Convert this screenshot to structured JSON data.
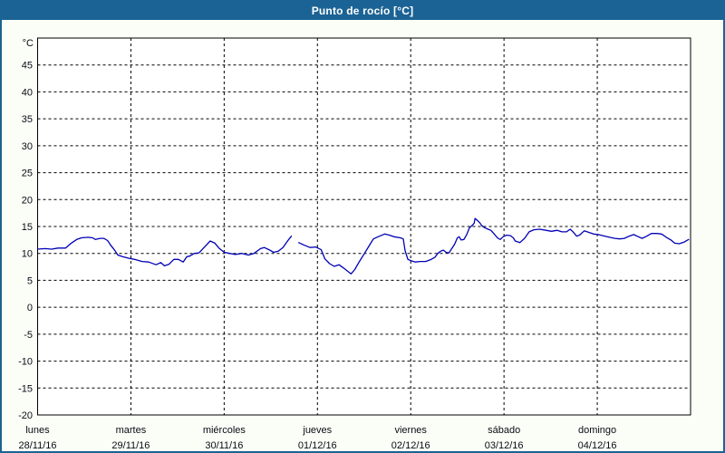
{
  "window": {
    "title": "Punto de rocío [°C]"
  },
  "colors": {
    "titlebar": "#1b6394",
    "border": "#1b6394",
    "background": "#fbfef7",
    "plot_bg": "#ffffff",
    "grid": "#000000",
    "text": "#0a0a14",
    "line": "#0000b4"
  },
  "chart_data": {
    "type": "line",
    "title": "Punto de rocío [°C]",
    "unit_label": "°C",
    "ylabel": "°C",
    "xlabel": "",
    "ylim": [
      -20,
      50
    ],
    "yticks": [
      45,
      40,
      35,
      30,
      25,
      20,
      15,
      10,
      5,
      0,
      -5,
      -10,
      -15,
      -20
    ],
    "grid": "dashed",
    "legend_position": "none",
    "x_days": [
      {
        "name": "lunes",
        "date": "28/11/16"
      },
      {
        "name": "martes",
        "date": "29/11/16"
      },
      {
        "name": "miércoles",
        "date": "30/11/16"
      },
      {
        "name": "jueves",
        "date": "01/12/16"
      },
      {
        "name": "viernes",
        "date": "02/12/16"
      },
      {
        "name": "sábado",
        "date": "03/12/16"
      },
      {
        "name": "domingo",
        "date": "04/12/16"
      }
    ],
    "line_color": "#0000b4",
    "series": [
      {
        "name": "Punto de rocío",
        "x_unit": "days_since_28_11_16",
        "segments": [
          [
            [
              0.0,
              10.8
            ],
            [
              0.08,
              10.9
            ],
            [
              0.15,
              10.8
            ],
            [
              0.22,
              11.0
            ],
            [
              0.3,
              11.0
            ],
            [
              0.36,
              11.9
            ],
            [
              0.42,
              12.6
            ],
            [
              0.47,
              12.9
            ],
            [
              0.54,
              13.0
            ],
            [
              0.59,
              12.9
            ],
            [
              0.62,
              12.6
            ],
            [
              0.67,
              12.8
            ],
            [
              0.71,
              12.8
            ],
            [
              0.75,
              12.4
            ],
            [
              0.78,
              11.6
            ],
            [
              0.83,
              10.5
            ],
            [
              0.86,
              9.7
            ],
            [
              0.91,
              9.4
            ],
            [
              0.98,
              9.1
            ],
            [
              1.04,
              8.9
            ],
            [
              1.12,
              8.5
            ],
            [
              1.19,
              8.4
            ],
            [
              1.27,
              7.9
            ],
            [
              1.32,
              8.3
            ],
            [
              1.36,
              7.7
            ],
            [
              1.41,
              8.0
            ],
            [
              1.46,
              8.9
            ],
            [
              1.51,
              8.9
            ],
            [
              1.56,
              8.4
            ],
            [
              1.6,
              9.4
            ],
            [
              1.63,
              9.5
            ],
            [
              1.68,
              10.0
            ],
            [
              1.73,
              10.1
            ],
            [
              1.8,
              11.4
            ],
            [
              1.85,
              12.3
            ],
            [
              1.9,
              11.9
            ],
            [
              1.95,
              10.9
            ],
            [
              2.0,
              10.2
            ],
            [
              2.06,
              10.0
            ],
            [
              2.12,
              9.8
            ],
            [
              2.19,
              10.0
            ],
            [
              2.26,
              9.7
            ],
            [
              2.32,
              10.0
            ],
            [
              2.39,
              10.9
            ],
            [
              2.43,
              11.1
            ],
            [
              2.48,
              10.7
            ],
            [
              2.53,
              10.2
            ],
            [
              2.58,
              10.4
            ],
            [
              2.63,
              11.1
            ],
            [
              2.68,
              12.3
            ],
            [
              2.72,
              13.2
            ]
          ],
          [
            [
              2.8,
              12.0
            ],
            [
              2.85,
              11.6
            ],
            [
              2.92,
              11.1
            ],
            [
              2.98,
              11.2
            ],
            [
              3.04,
              10.7
            ],
            [
              3.08,
              9.0
            ],
            [
              3.13,
              8.1
            ],
            [
              3.18,
              7.6
            ],
            [
              3.23,
              7.9
            ],
            [
              3.28,
              7.3
            ],
            [
              3.33,
              6.6
            ],
            [
              3.36,
              6.2
            ],
            [
              3.4,
              7.0
            ],
            [
              3.45,
              8.5
            ],
            [
              3.5,
              9.9
            ],
            [
              3.55,
              11.3
            ],
            [
              3.6,
              12.7
            ],
            [
              3.65,
              13.1
            ],
            [
              3.72,
              13.6
            ],
            [
              3.77,
              13.4
            ],
            [
              3.82,
              13.1
            ],
            [
              3.89,
              12.9
            ],
            [
              3.92,
              12.7
            ],
            [
              3.94,
              10.5
            ],
            [
              3.97,
              8.9
            ],
            [
              4.01,
              8.6
            ],
            [
              4.05,
              8.4
            ],
            [
              4.1,
              8.5
            ],
            [
              4.16,
              8.5
            ],
            [
              4.21,
              8.8
            ],
            [
              4.26,
              9.3
            ],
            [
              4.29,
              10.0
            ],
            [
              4.32,
              10.4
            ],
            [
              4.35,
              10.6
            ],
            [
              4.38,
              10.2
            ],
            [
              4.41,
              10.1
            ],
            [
              4.44,
              10.9
            ],
            [
              4.47,
              11.7
            ],
            [
              4.5,
              12.9
            ],
            [
              4.52,
              13.1
            ],
            [
              4.54,
              12.5
            ],
            [
              4.57,
              12.6
            ],
            [
              4.6,
              13.5
            ],
            [
              4.63,
              14.8
            ],
            [
              4.66,
              15.2
            ],
            [
              4.68,
              15.6
            ],
            [
              4.69,
              16.5
            ],
            [
              4.71,
              16.2
            ],
            [
              4.74,
              15.7
            ],
            [
              4.76,
              15.2
            ],
            [
              4.79,
              14.8
            ],
            [
              4.83,
              14.5
            ],
            [
              4.86,
              14.3
            ],
            [
              4.89,
              13.7
            ],
            [
              4.93,
              12.9
            ],
            [
              4.96,
              12.6
            ],
            [
              4.99,
              13.1
            ],
            [
              5.03,
              13.4
            ],
            [
              5.07,
              13.3
            ],
            [
              5.1,
              12.9
            ],
            [
              5.12,
              12.3
            ],
            [
              5.17,
              12.0
            ],
            [
              5.22,
              12.8
            ],
            [
              5.27,
              14.0
            ],
            [
              5.32,
              14.4
            ],
            [
              5.38,
              14.5
            ],
            [
              5.45,
              14.3
            ],
            [
              5.51,
              14.1
            ],
            [
              5.57,
              14.3
            ],
            [
              5.62,
              14.0
            ],
            [
              5.67,
              14.0
            ],
            [
              5.71,
              14.5
            ],
            [
              5.74,
              14.0
            ],
            [
              5.78,
              13.2
            ],
            [
              5.81,
              13.4
            ],
            [
              5.86,
              14.2
            ],
            [
              5.91,
              13.9
            ],
            [
              5.96,
              13.6
            ],
            [
              6.01,
              13.5
            ],
            [
              6.06,
              13.3
            ],
            [
              6.13,
              13.0
            ],
            [
              6.19,
              12.8
            ],
            [
              6.24,
              12.7
            ],
            [
              6.29,
              12.8
            ],
            [
              6.34,
              13.2
            ],
            [
              6.39,
              13.5
            ],
            [
              6.44,
              13.1
            ],
            [
              6.48,
              12.8
            ],
            [
              6.53,
              13.2
            ],
            [
              6.58,
              13.7
            ],
            [
              6.64,
              13.7
            ],
            [
              6.69,
              13.6
            ],
            [
              6.74,
              13.0
            ],
            [
              6.79,
              12.5
            ],
            [
              6.83,
              11.9
            ],
            [
              6.88,
              11.8
            ],
            [
              6.93,
              12.1
            ],
            [
              6.98,
              12.6
            ]
          ]
        ]
      }
    ]
  }
}
